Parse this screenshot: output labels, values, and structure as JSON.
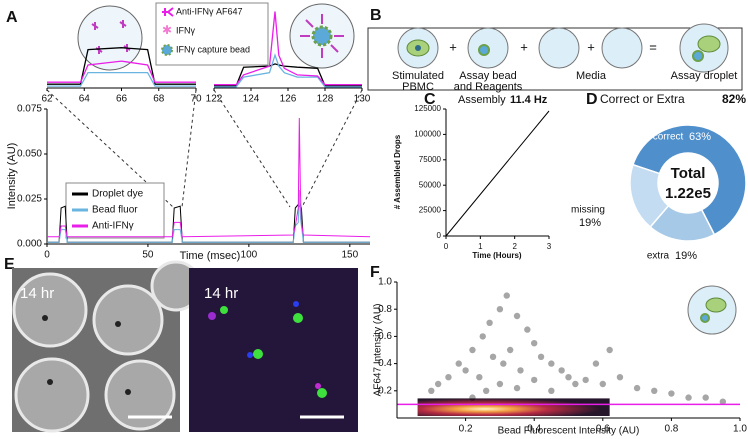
{
  "panel_labels": [
    "A",
    "B",
    "C",
    "D",
    "E",
    "F"
  ],
  "panel_a_legend": [
    "Anti-IFNγ AF647",
    "IFNγ",
    "IFNγ capture bead"
  ],
  "panel_b": {
    "items": [
      [
        "Stimulated",
        "PBMC"
      ],
      [
        "Assay bead",
        "and Reagents"
      ],
      [
        "Media"
      ],
      [
        "Assay droplet"
      ]
    ],
    "operators": [
      "+",
      "+",
      "+",
      "="
    ]
  },
  "panel_e": {
    "labels": [
      "14 hr",
      "14 hr"
    ]
  },
  "chart_data": [
    {
      "type": "line",
      "x_label": "Time (msec)",
      "y_label": "Intensity (AU)",
      "x": [
        0,
        6,
        7,
        9,
        10,
        62,
        63,
        66,
        67,
        122,
        123,
        124.5,
        125,
        125.5,
        126,
        127,
        160
      ],
      "series": [
        {
          "name": "Droplet dye",
          "color": "#000000",
          "values": [
            0.001,
            0.001,
            0.02,
            0.021,
            0.001,
            0.001,
            0.02,
            0.021,
            0.001,
            0.001,
            0.02,
            0.022,
            0.021,
            0.022,
            0.02,
            0.001,
            0.001
          ]
        },
        {
          "name": "Bead fluor",
          "color": "#6ab4e0",
          "values": [
            0.001,
            0.001,
            0.008,
            0.008,
            0.001,
            0.001,
            0.008,
            0.008,
            0.001,
            0.001,
            0.01,
            0.012,
            0.03,
            0.015,
            0.01,
            0.001,
            0.001
          ]
        },
        {
          "name": "Anti-IFNγ",
          "color": "#e91ee8",
          "values": [
            0.004,
            0.004,
            0.01,
            0.01,
            0.004,
            0.004,
            0.012,
            0.012,
            0.004,
            0.005,
            0.01,
            0.02,
            0.07,
            0.03,
            0.012,
            0.005,
            0.004
          ]
        }
      ],
      "xlim": [
        0,
        160
      ],
      "xticks": [
        0,
        50,
        100,
        150
      ],
      "ylim": [
        0,
        0.075
      ],
      "yticks": [
        {
          "value": 0,
          "label": "0.000"
        },
        {
          "value": 0.025,
          "label": "0.025"
        },
        {
          "value": 0.05,
          "label": "0.050"
        },
        {
          "value": 0.075,
          "label": "0.075"
        }
      ]
    },
    {
      "type": "line",
      "x": [
        62,
        63.8,
        64.2,
        66,
        67.4,
        67.8,
        70
      ],
      "series": [
        {
          "color": "#000000",
          "values": [
            0.002,
            0.002,
            0.02,
            0.021,
            0.02,
            0.002,
            0.002
          ]
        },
        {
          "color": "#6ab4e0",
          "values": [
            0.001,
            0.001,
            0.008,
            0.008,
            0.008,
            0.001,
            0.001
          ]
        },
        {
          "color": "#e91ee8",
          "values": [
            0.003,
            0.003,
            0.012,
            0.014,
            0.012,
            0.003,
            0.003
          ]
        }
      ],
      "xlim": [
        62,
        70
      ],
      "xticks": [
        62,
        64,
        66,
        68,
        70
      ],
      "ylim": [
        0,
        0.025
      ]
    },
    {
      "type": "line",
      "x": [
        122,
        123.2,
        123.6,
        125,
        125.3,
        125.5,
        125.8,
        126.5,
        127.6,
        128,
        130
      ],
      "series": [
        {
          "color": "#000000",
          "values": [
            0.002,
            0.002,
            0.019,
            0.02,
            0.022,
            0.021,
            0.02,
            0.019,
            0.018,
            0.002,
            0.002
          ]
        },
        {
          "color": "#6ab4e0",
          "values": [
            0.001,
            0.001,
            0.01,
            0.014,
            0.03,
            0.02,
            0.014,
            0.01,
            0.01,
            0.001,
            0.001
          ]
        },
        {
          "color": "#e91ee8",
          "values": [
            0.003,
            0.003,
            0.012,
            0.02,
            0.07,
            0.03,
            0.018,
            0.012,
            0.011,
            0.003,
            0.003
          ]
        }
      ],
      "xlim": [
        122,
        130
      ],
      "xticks": [
        122,
        124,
        126,
        128,
        130
      ],
      "ylim": [
        0,
        0.075
      ]
    },
    {
      "type": "line",
      "title": "Assembly",
      "title_value": "11.4 Hz",
      "x_label": "Time (Hours)",
      "y_label": "# Assembled Drops",
      "x": [
        0,
        3
      ],
      "values": [
        0,
        123000
      ],
      "color": "#000000",
      "xlim": [
        0,
        3
      ],
      "xticks": [
        0,
        1,
        2,
        3
      ],
      "ylim": [
        0,
        125000
      ],
      "yticks": [
        0,
        25000,
        50000,
        75000,
        100000,
        125000
      ]
    },
    {
      "type": "pie",
      "title": "Correct or Extra",
      "title_value": "82%",
      "categories": [
        "correct",
        "extra",
        "missing"
      ],
      "values": [
        63,
        19,
        19
      ],
      "value_labels": [
        "63%",
        "19%",
        "19%"
      ],
      "colors": [
        "#4f8fcb",
        "#a6c9e8",
        "#c4dcf1"
      ],
      "center_title": "Total",
      "center_value": {
        "value": 122000,
        "label": "1.22e5"
      }
    },
    {
      "type": "scatter",
      "x_label": "Bead Fluorescent Intensity (AU)",
      "y_label": "AF647 Intensity (AU)",
      "x": [
        0.1,
        0.12,
        0.15,
        0.18,
        0.2,
        0.22,
        0.25,
        0.27,
        0.3,
        0.32,
        0.35,
        0.38,
        0.4,
        0.42,
        0.45,
        0.48,
        0.5,
        0.55,
        0.6,
        0.65,
        0.7,
        0.75,
        0.8,
        0.85,
        0.9,
        0.95,
        0.28,
        0.33,
        0.24,
        0.36,
        0.3,
        0.26,
        0.31,
        0.35,
        0.22,
        0.4,
        0.45,
        0.52,
        0.58,
        0.62
      ],
      "values": [
        0.2,
        0.25,
        0.3,
        0.4,
        0.35,
        0.5,
        0.6,
        0.7,
        0.8,
        0.9,
        0.75,
        0.65,
        0.55,
        0.45,
        0.4,
        0.35,
        0.3,
        0.28,
        0.25,
        0.3,
        0.22,
        0.2,
        0.18,
        0.15,
        0.15,
        0.12,
        0.45,
        0.5,
        0.3,
        0.35,
        0.25,
        0.2,
        0.4,
        0.22,
        0.15,
        0.28,
        0.2,
        0.25,
        0.4,
        0.5
      ],
      "color": "#000000",
      "threshold": 0.1,
      "threshold_color": "#e91ee8",
      "xlim": [
        0,
        1
      ],
      "xticks": [
        0.2,
        0.4,
        0.6,
        0.8,
        {
          "value": 1,
          "label": "1.0"
        }
      ],
      "ylim": [
        0,
        1
      ],
      "yticks": [
        0.2,
        0.4,
        0.6,
        0.8,
        {
          "value": 1,
          "label": "1.0"
        }
      ]
    }
  ]
}
